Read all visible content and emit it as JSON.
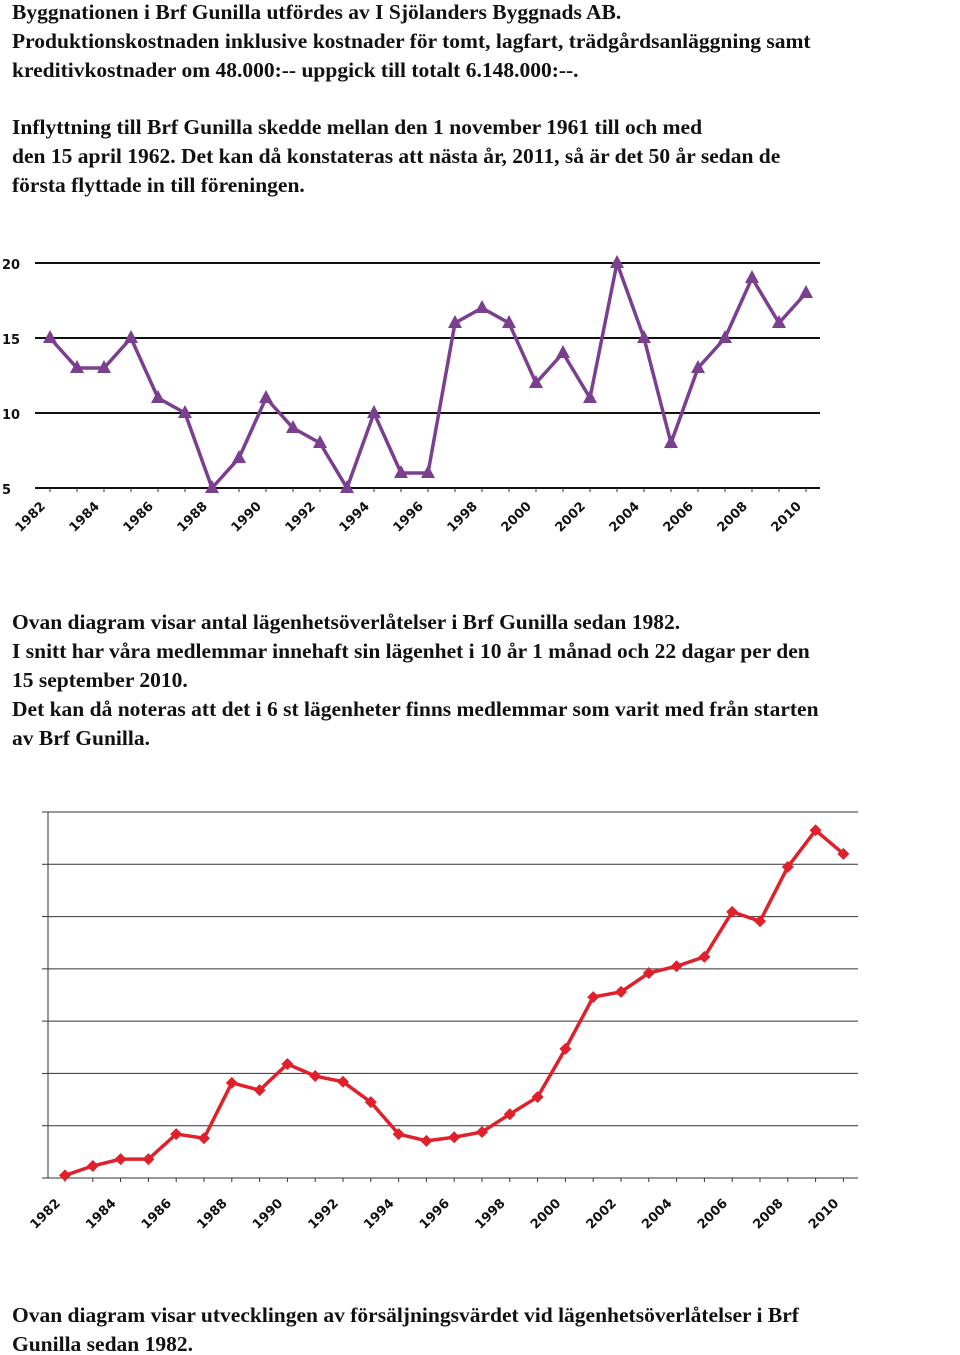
{
  "blocks": [
    [
      "Byggnationen i Brf Gunilla utfördes av I Sjölanders Byggnads AB.",
      "Produktionskostnaden inklusive kostnader för tomt, lagfart, trädgårdsanläggning samt",
      "kreditivkostnader om 48.000:-- uppgick till totalt 6.148.000:--."
    ],
    [
      "Inflyttning till Brf Gunilla skedde mellan den 1 november 1961 till och med",
      "den 15 april 1962. Det kan då konstateras att nästa år, 2011, så är det 50 år sedan de",
      "första flyttade in till föreningen."
    ],
    [
      "Ovan diagram visar antal lägenhetsöverlåtelser i Brf Gunilla sedan 1982.",
      "I snitt har våra medlemmar innehaft sin lägenhet i 10 år 1 månad och 22 dagar per den",
      "15 september 2010.",
      "Det kan då noteras att det i 6 st lägenheter finns medlemmar som varit med från starten",
      "av Brf Gunilla."
    ],
    [
      "Ovan diagram visar utvecklingen av försäljningsvärdet vid lägenhetsöverlåtelser i Brf",
      "Gunilla sedan 1982."
    ]
  ],
  "chart_data": [
    {
      "type": "line",
      "marker": "triangle",
      "color": "#7b3f8f",
      "tick_labels": true,
      "categories": [
        "1982",
        null,
        "1984",
        null,
        "1986",
        null,
        "1988",
        null,
        "1990",
        null,
        "1992",
        null,
        "1994",
        null,
        "1996",
        null,
        "1998",
        null,
        "2000",
        null,
        "2002",
        null,
        "2004",
        null,
        "2006",
        null,
        "2008",
        null,
        "2010"
      ],
      "values": [
        15,
        13,
        13,
        15,
        11,
        10,
        5,
        7,
        11,
        9,
        8,
        5,
        10,
        6,
        6,
        16,
        17,
        16,
        12,
        14,
        11,
        20,
        15,
        8,
        13,
        15,
        19,
        16,
        18
      ],
      "ylim": [
        5,
        20
      ],
      "yticks": [
        5,
        10,
        15,
        20
      ],
      "grid": true
    },
    {
      "type": "line",
      "marker": "diamond",
      "color": "#e0202a",
      "tick_labels": false,
      "categories": [
        "1982",
        null,
        "1984",
        null,
        "1986",
        null,
        "1988",
        null,
        "1990",
        null,
        "1992",
        null,
        "1994",
        null,
        "1996",
        null,
        "1998",
        null,
        "2000",
        null,
        "2002",
        null,
        "2004",
        null,
        "2006",
        null,
        "2008",
        null,
        "2010"
      ],
      "values": [
        0.05,
        0.23,
        0.36,
        0.36,
        0.84,
        0.76,
        1.82,
        1.68,
        2.18,
        1.95,
        1.84,
        1.45,
        0.84,
        0.71,
        0.78,
        0.88,
        1.22,
        1.55,
        2.47,
        3.46,
        3.56,
        3.92,
        4.05,
        4.23,
        5.09,
        4.91,
        5.95,
        6.65,
        6.2
      ],
      "ylim": [
        0,
        7
      ],
      "yticks": [
        0,
        1,
        2,
        3,
        4,
        5,
        6,
        7
      ],
      "grid": true
    }
  ]
}
